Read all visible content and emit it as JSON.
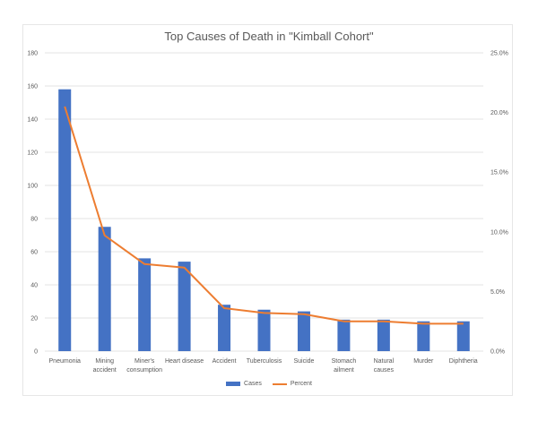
{
  "chart_data": {
    "type": "bar",
    "combo": "bar + line (secondary axis)",
    "title": "Top Causes of Death in \"Kimball Cohort\"",
    "xlabel": "",
    "ylabel": "",
    "y2label": "",
    "categories": [
      "Pneumonia",
      "Mining accident",
      "Miner's consumption",
      "Heart disease",
      "Accident",
      "Tuberculosis",
      "Suicide",
      "Stomach ailment",
      "Natural causes",
      "Murder",
      "Diphtheria"
    ],
    "category_lines": [
      [
        "Pneumonia"
      ],
      [
        "Mining",
        "accident"
      ],
      [
        "Miner's",
        "consumption"
      ],
      [
        "Heart disease"
      ],
      [
        "Accident"
      ],
      [
        "Tuberculosis"
      ],
      [
        "Suicide"
      ],
      [
        "Stomach",
        "ailment"
      ],
      [
        "Natural",
        "causes"
      ],
      [
        "Murder"
      ],
      [
        "Diphtheria"
      ]
    ],
    "series": [
      {
        "name": "Cases",
        "type": "bar",
        "axis": "primary",
        "color": "#4472C4",
        "values": [
          158,
          75,
          56,
          54,
          28,
          25,
          24,
          19,
          19,
          18,
          18
        ]
      },
      {
        "name": "Percent",
        "type": "line",
        "axis": "secondary",
        "color": "#ED7D31",
        "values": [
          20.5,
          9.7,
          7.3,
          7.0,
          3.6,
          3.2,
          3.1,
          2.5,
          2.5,
          2.3,
          2.3
        ]
      }
    ],
    "ylim": [
      0,
      180
    ],
    "yticks": [
      0,
      20,
      40,
      60,
      80,
      100,
      120,
      140,
      160,
      180
    ],
    "y2lim": [
      0,
      25
    ],
    "y2ticks": [
      "0.0%",
      "5.0%",
      "10.0%",
      "15.0%",
      "20.0%",
      "25.0%"
    ],
    "grid": true,
    "legend_position": "bottom"
  },
  "legend": {
    "cases_label": "Cases",
    "percent_label": "Percent"
  }
}
